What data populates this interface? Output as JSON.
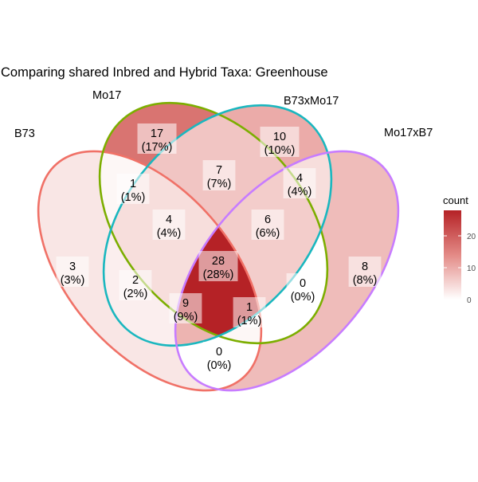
{
  "title": "Comparing shared Inbred and Hybrid Taxa: Greenhouse",
  "colors": {
    "B73": "#F07167",
    "Mo17": "#7CAE00",
    "B73xMo17": "#1AB7BF",
    "Mo17xB7": "#C77CFF",
    "fill_high": "#B52226",
    "fill_low": "#FFFFFF"
  },
  "sets": [
    {
      "key": "B73",
      "label": "B73",
      "color": "#F07167"
    },
    {
      "key": "Mo17",
      "label": "Mo17",
      "color": "#7CAE00"
    },
    {
      "key": "B73xMo17",
      "label": "B73xMo17",
      "color": "#1AB7BF"
    },
    {
      "key": "Mo17xB7",
      "label": "Mo17xB7",
      "color": "#C77CFF"
    }
  ],
  "regions": [
    {
      "sets": [
        "B73"
      ],
      "count": "3",
      "percent": "(3%)"
    },
    {
      "sets": [
        "Mo17"
      ],
      "count": "17",
      "percent": "(17%)"
    },
    {
      "sets": [
        "B73xMo17"
      ],
      "count": "10",
      "percent": "(10%)"
    },
    {
      "sets": [
        "Mo17xB7"
      ],
      "count": "8",
      "percent": "(8%)"
    },
    {
      "sets": [
        "B73",
        "Mo17"
      ],
      "count": "1",
      "percent": "(1%)"
    },
    {
      "sets": [
        "Mo17",
        "B73xMo17"
      ],
      "count": "7",
      "percent": "(7%)"
    },
    {
      "sets": [
        "B73xMo17",
        "Mo17xB7"
      ],
      "count": "4",
      "percent": "(4%)"
    },
    {
      "sets": [
        "B73",
        "Mo17",
        "B73xMo17"
      ],
      "count": "4",
      "percent": "(4%)"
    },
    {
      "sets": [
        "Mo17",
        "B73xMo17",
        "Mo17xB7"
      ],
      "count": "6",
      "percent": "(6%)"
    },
    {
      "sets": [
        "B73",
        "Mo17",
        "B73xMo17",
        "Mo17xB7"
      ],
      "count": "28",
      "percent": "(28%)"
    },
    {
      "sets": [
        "B73",
        "B73xMo17"
      ],
      "count": "2",
      "percent": "(2%)"
    },
    {
      "sets": [
        "Mo17",
        "Mo17xB7"
      ],
      "count": "0",
      "percent": "(0%)"
    },
    {
      "sets": [
        "B73",
        "B73xMo17",
        "Mo17xB7"
      ],
      "count": "9",
      "percent": "(9%)"
    },
    {
      "sets": [
        "B73",
        "Mo17",
        "Mo17xB7"
      ],
      "count": "1",
      "percent": "(1%)"
    },
    {
      "sets": [
        "B73",
        "Mo17xB7"
      ],
      "count": "0",
      "percent": "(0%)"
    }
  ],
  "legend": {
    "title": "count",
    "ticks": [
      "20",
      "10",
      "0"
    ],
    "tick_values": [
      20,
      10,
      0
    ],
    "max": 28
  }
}
